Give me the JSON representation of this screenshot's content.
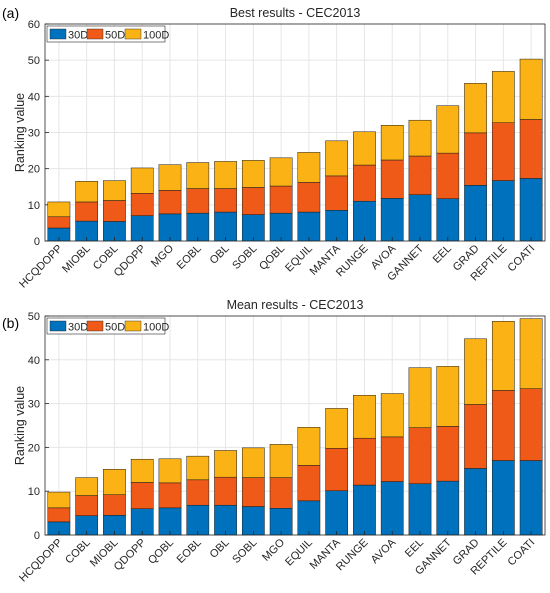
{
  "colors": {
    "s30": "#0072BD",
    "s50": "#F05A18",
    "s100": "#FBB215",
    "grid": "#e6e6e6",
    "axis": "#262626"
  },
  "chart_data": [
    {
      "panel_label": "(a)",
      "type": "bar",
      "stacked": true,
      "title": "Best results - CEC2013",
      "ylabel": "Ranking value",
      "xlabel": "",
      "ylim": [
        0,
        60
      ],
      "yticks": [
        "0",
        "10",
        "20",
        "30",
        "40",
        "50",
        "60"
      ],
      "grid": true,
      "legend_position": "top-left",
      "categories": [
        "HCQDOPP",
        "MIOBL",
        "COBL",
        "QDOPP",
        "MGO",
        "EOBL",
        "OBL",
        "SOBL",
        "QOBL",
        "EQUIL",
        "MANTA",
        "RUNGE",
        "AVOA",
        "GANNET",
        "EEL",
        "GRAD",
        "REPTILE",
        "COATI"
      ],
      "series": [
        {
          "name": "30D",
          "values": [
            3.6,
            5.5,
            5.4,
            7.0,
            7.5,
            7.7,
            8.0,
            7.3,
            7.7,
            8.0,
            8.5,
            11.0,
            11.8,
            12.8,
            11.7,
            15.4,
            16.7,
            17.3
          ]
        },
        {
          "name": "50D",
          "values": [
            3.1,
            5.3,
            5.8,
            6.2,
            6.5,
            6.8,
            6.5,
            7.5,
            7.5,
            8.2,
            9.5,
            10.0,
            10.6,
            10.7,
            12.6,
            14.5,
            16.0,
            16.3
          ]
        },
        {
          "name": "100D",
          "values": [
            4.1,
            5.7,
            5.5,
            7.0,
            7.1,
            7.2,
            7.5,
            7.5,
            7.8,
            8.3,
            9.7,
            9.2,
            9.6,
            9.9,
            13.1,
            13.7,
            14.2,
            16.7
          ]
        }
      ]
    },
    {
      "panel_label": "(b)",
      "type": "bar",
      "stacked": true,
      "title": "Mean results - CEC2013",
      "ylabel": "Ranking value",
      "xlabel": "",
      "ylim": [
        0,
        50
      ],
      "yticks": [
        "0",
        "10",
        "20",
        "30",
        "40",
        "50"
      ],
      "grid": true,
      "legend_position": "top-left",
      "categories": [
        "HCQDOPP",
        "COBL",
        "MIOBL",
        "QDOPP",
        "QOBL",
        "EOBL",
        "OBL",
        "SOBL",
        "MGO",
        "EQUIL",
        "MANTA",
        "RUNGE",
        "AVOA",
        "EEL",
        "GANNET",
        "GRAD",
        "REPTILE",
        "COATI"
      ],
      "series": [
        {
          "name": "30D",
          "values": [
            3.0,
            4.4,
            4.5,
            6.0,
            6.2,
            6.8,
            6.8,
            6.5,
            6.1,
            7.8,
            10.1,
            11.4,
            12.2,
            11.7,
            12.3,
            15.2,
            17.0,
            17.0
          ]
        },
        {
          "name": "50D",
          "values": [
            3.2,
            4.6,
            4.7,
            6.0,
            5.7,
            5.8,
            6.4,
            6.6,
            7.0,
            8.1,
            9.7,
            10.7,
            10.2,
            12.8,
            12.5,
            14.6,
            16.0,
            16.4
          ]
        },
        {
          "name": "100D",
          "values": [
            3.6,
            4.1,
            5.8,
            5.3,
            5.5,
            5.4,
            6.1,
            6.8,
            7.6,
            8.7,
            9.1,
            9.8,
            9.9,
            13.7,
            13.7,
            15.0,
            15.8,
            16.0
          ]
        }
      ]
    }
  ]
}
